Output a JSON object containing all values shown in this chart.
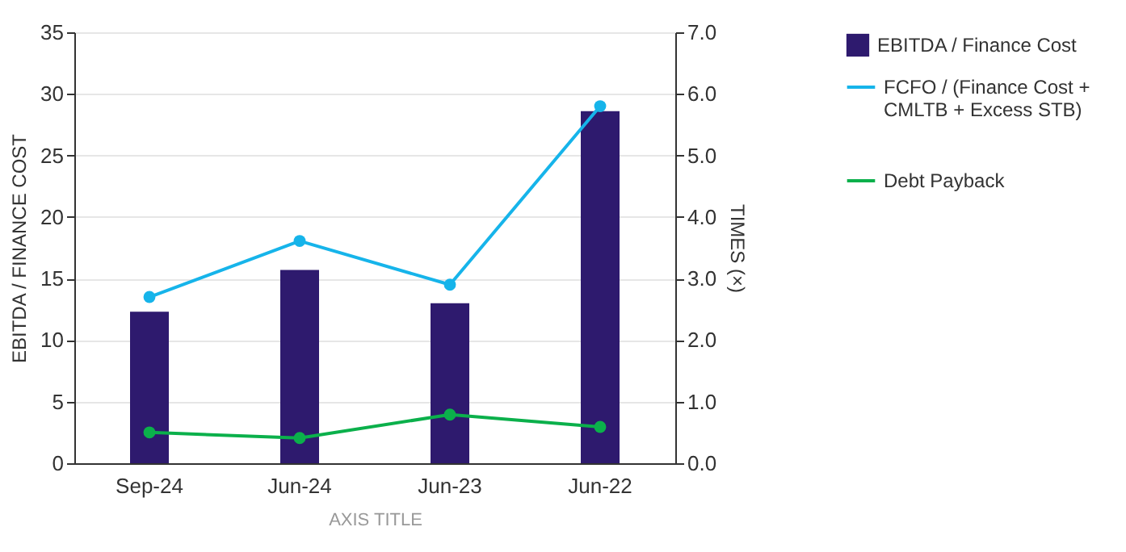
{
  "chart_data": {
    "type": "bar",
    "xlabel": "AXIS TITLE",
    "ylabel": "EBITDA / FINANCE COST",
    "y2label": "TIMES (×)",
    "categories": [
      "Sep-24",
      "Jun-24",
      "Jun-23",
      "Jun-22"
    ],
    "series": [
      {
        "name": "EBITDA / Finance Cost",
        "color": "#2e1a6e",
        "values": [
          12.3,
          15.7,
          13.0,
          28.6
        ]
      },
      {
        "name": "FCFO / (Finance Cost + CMLTB + Excess STB)",
        "type": "line",
        "axis": "y2",
        "color": "#16b4ea",
        "values": [
          2.7,
          3.61,
          2.9,
          5.8
        ]
      },
      {
        "name": "Debt Payback",
        "type": "line",
        "axis": "y2",
        "color": "#0bb04b",
        "values": [
          0.5,
          0.41,
          0.79,
          0.59
        ]
      }
    ],
    "ylim": [
      0,
      35
    ],
    "yticks": [
      0,
      5,
      10,
      15,
      20,
      25,
      30,
      35
    ],
    "y2lim": [
      0,
      7
    ],
    "y2ticks": [
      {
        "value": 0,
        "label": "0.0"
      },
      {
        "value": 1,
        "label": "1.0"
      },
      {
        "value": 2,
        "label": "2.0"
      },
      {
        "value": 3,
        "label": "3.0"
      },
      {
        "value": 4,
        "label": "4.0"
      },
      {
        "value": 5,
        "label": "5.0"
      },
      {
        "value": 6,
        "label": "6.0"
      },
      {
        "value": 7,
        "label": "7.0"
      }
    ],
    "grid": "y",
    "legend": "right",
    "marker": "circle",
    "line_style": "solid"
  }
}
